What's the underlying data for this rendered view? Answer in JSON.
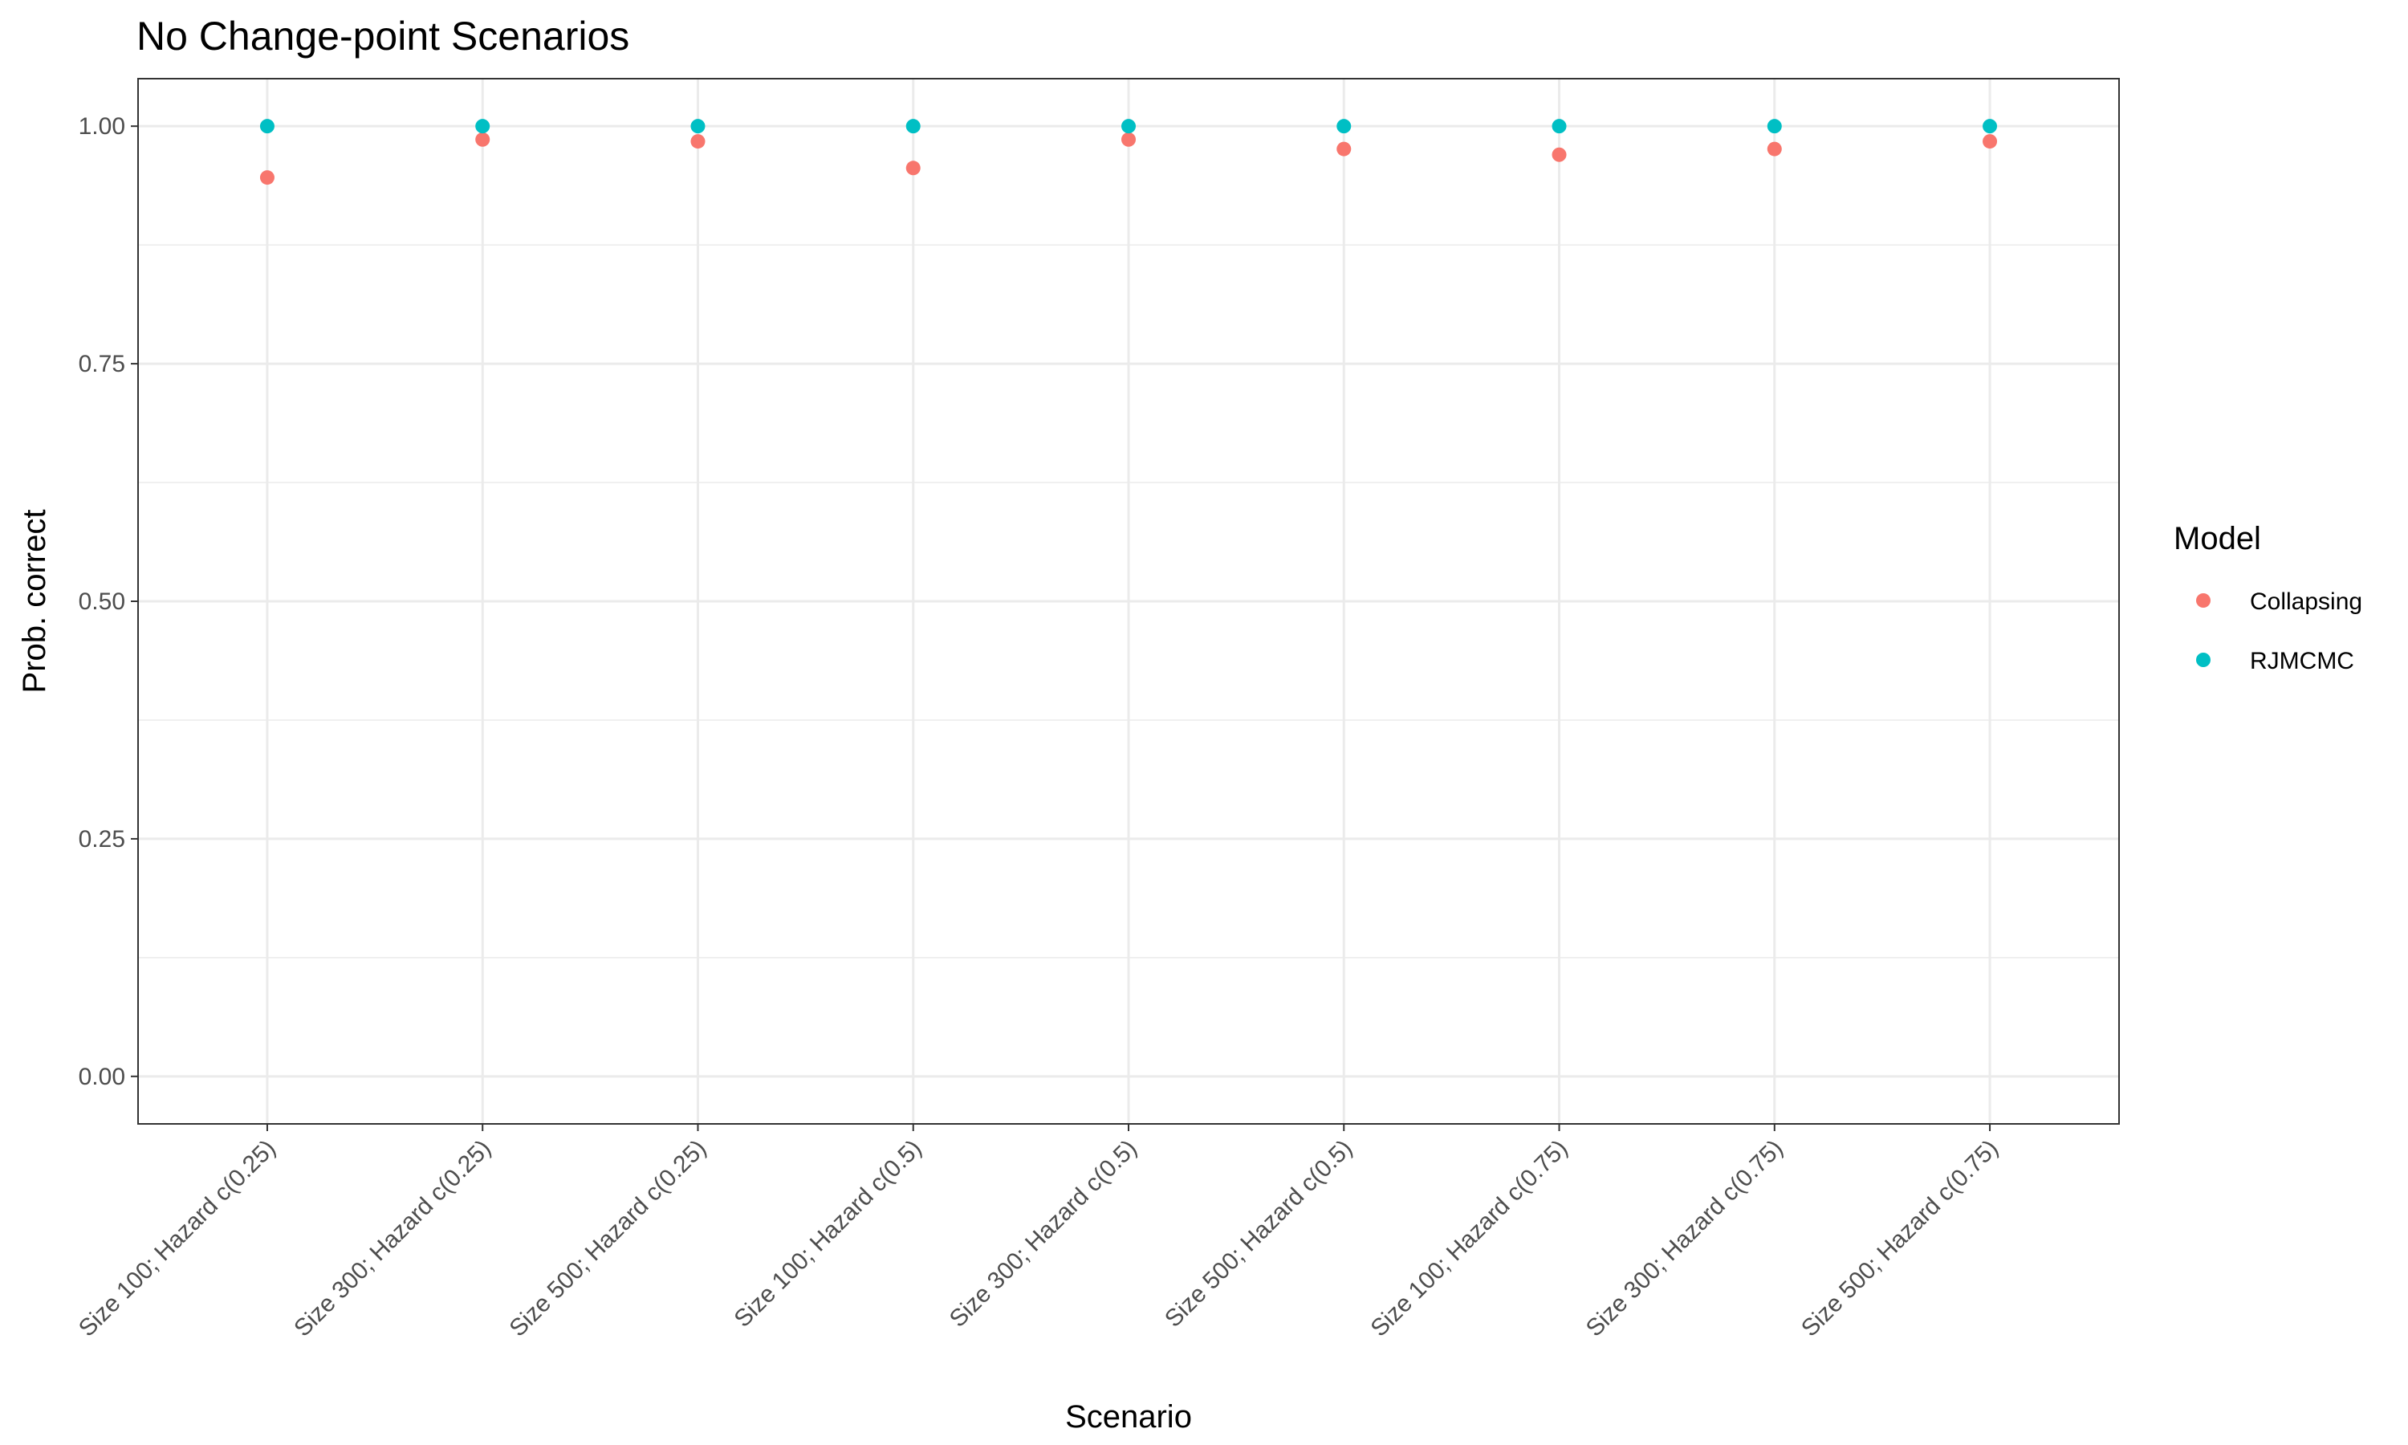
{
  "chart_data": {
    "type": "scatter",
    "title": "No Change-point Scenarios",
    "xlabel": "Scenario",
    "ylabel": "Prob. correct",
    "categories": [
      "Size 100; Hazard c(0.25)",
      "Size 300; Hazard c(0.25)",
      "Size 500; Hazard c(0.25)",
      "Size 100; Hazard c(0.5)",
      "Size 300; Hazard c(0.5)",
      "Size 500; Hazard c(0.5)",
      "Size 100; Hazard c(0.75)",
      "Size 300; Hazard c(0.75)",
      "Size 500; Hazard c(0.75)"
    ],
    "ylim": [
      -0.05,
      1.05
    ],
    "yticks": [
      0.0,
      0.25,
      0.5,
      0.75,
      1.0
    ],
    "ytick_labels": [
      "0.00",
      "0.25",
      "0.50",
      "0.75",
      "1.00"
    ],
    "grid": true,
    "legend_title": "Model",
    "legend_position": "right",
    "series": [
      {
        "name": "Collapsing",
        "color": "#F8766D",
        "values": [
          0.946,
          0.986,
          0.984,
          0.956,
          0.986,
          0.976,
          0.97,
          0.976,
          0.984
        ]
      },
      {
        "name": "RJMCMC",
        "color": "#00BFC4",
        "values": [
          1.0,
          1.0,
          1.0,
          1.0,
          1.0,
          1.0,
          1.0,
          1.0,
          1.0
        ]
      }
    ]
  }
}
